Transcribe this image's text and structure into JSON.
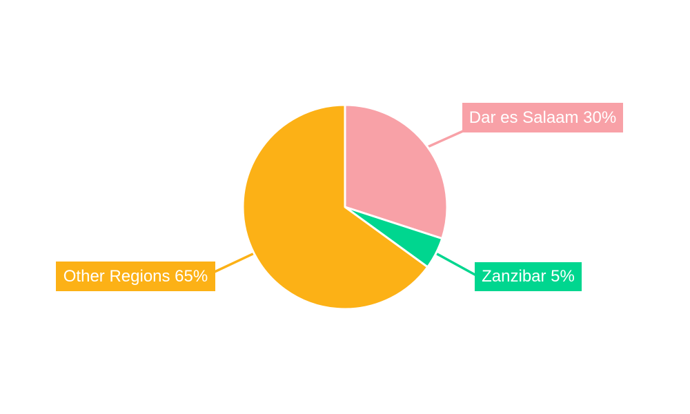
{
  "chart_data": {
    "type": "pie",
    "title": "",
    "legend_position": "none",
    "label_style": "boxed labels with leader lines",
    "direction": "clockwise",
    "start_angle_deg": 0,
    "background_color": "#FFFFFF",
    "slice_border_color": "#FFFFFF",
    "text_color": "#FFFFFF",
    "slices": [
      {
        "id": "dar-es-salaam",
        "label": "Dar es Salaam",
        "value": 30,
        "unit": "%",
        "display": "Dar es Salaam 30%",
        "color": "#F8A1A7"
      },
      {
        "id": "zanzibar",
        "label": "Zanzibar",
        "value": 5,
        "unit": "%",
        "display": "Zanzibar 5%",
        "color": "#00D68F"
      },
      {
        "id": "other-regions",
        "label": "Other Regions",
        "value": 65,
        "unit": "%",
        "display": "Other Regions 65%",
        "color": "#FCB116"
      }
    ]
  }
}
